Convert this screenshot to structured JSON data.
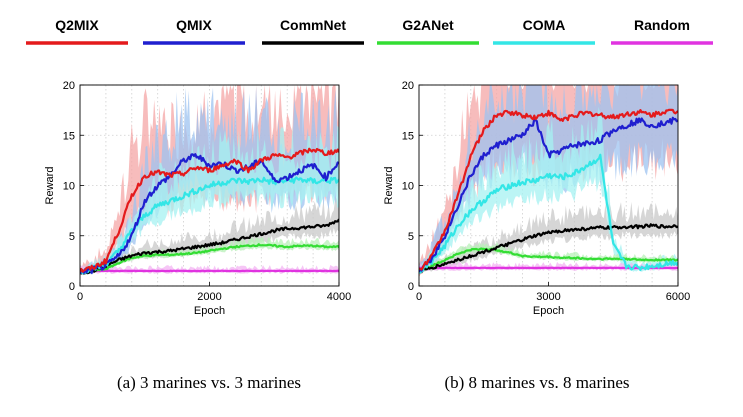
{
  "legend": [
    {
      "label": "Q2MIX",
      "color": "#e41a1c"
    },
    {
      "label": "QMIX",
      "color": "#1f1fcf"
    },
    {
      "label": "CommNet",
      "color": "#000000"
    },
    {
      "label": "G2ANet",
      "color": "#33dd33"
    },
    {
      "label": "COMA",
      "color": "#33e6e6"
    },
    {
      "label": "Random",
      "color": "#e033e0"
    }
  ],
  "chart_data": [
    {
      "type": "line",
      "caption": "(a) 3 marines vs. 3 marines",
      "xlabel": "Epoch",
      "ylabel": "Reward",
      "xlim": [
        0,
        4000
      ],
      "ylim": [
        0,
        20
      ],
      "xticks": [
        0,
        2000,
        4000
      ],
      "yticks": [
        0,
        5,
        10,
        15,
        20
      ],
      "grid": true,
      "x": [
        0,
        200,
        400,
        600,
        800,
        1000,
        1200,
        1400,
        1600,
        1800,
        2000,
        2200,
        2400,
        2600,
        2800,
        3000,
        3200,
        3400,
        3600,
        3800,
        4000
      ],
      "series": [
        {
          "name": "Q2MIX",
          "values": [
            1.5,
            1.8,
            2.5,
            5.5,
            9.0,
            11.0,
            11.3,
            11.0,
            11.2,
            11.8,
            11.5,
            12.0,
            12.5,
            11.5,
            12.5,
            13.0,
            12.8,
            13.2,
            13.6,
            13.2,
            13.5
          ]
        },
        {
          "name": "QMIX",
          "values": [
            1.4,
            1.6,
            2.0,
            3.0,
            5.0,
            8.5,
            10.0,
            11.0,
            12.5,
            13.0,
            12.0,
            12.2,
            11.5,
            11.8,
            12.5,
            10.5,
            10.8,
            11.5,
            12.0,
            10.8,
            12.4
          ]
        },
        {
          "name": "CommNet",
          "values": [
            1.3,
            1.5,
            2.0,
            2.6,
            3.0,
            3.3,
            3.4,
            3.5,
            3.7,
            3.9,
            4.1,
            4.3,
            4.6,
            4.9,
            5.2,
            5.5,
            5.7,
            5.8,
            5.9,
            6.0,
            6.6
          ]
        },
        {
          "name": "G2ANet",
          "values": [
            1.4,
            1.5,
            1.7,
            2.3,
            2.8,
            3.0,
            3.1,
            3.1,
            3.2,
            3.3,
            3.5,
            3.7,
            3.9,
            4.0,
            4.1,
            4.0,
            3.9,
            4.0,
            4.0,
            3.9,
            3.9
          ]
        },
        {
          "name": "COMA",
          "values": [
            1.5,
            1.7,
            2.2,
            3.5,
            5.5,
            7.0,
            8.0,
            8.5,
            9.0,
            9.5,
            10.0,
            10.3,
            10.5,
            10.4,
            10.6,
            10.3,
            10.5,
            10.6,
            10.4,
            10.5,
            10.5
          ]
        },
        {
          "name": "Random",
          "values": [
            1.5,
            1.5,
            1.5,
            1.5,
            1.5,
            1.5,
            1.5,
            1.5,
            1.5,
            1.5,
            1.5,
            1.5,
            1.5,
            1.5,
            1.5,
            1.5,
            1.5,
            1.5,
            1.5,
            1.5,
            1.5
          ]
        }
      ]
    },
    {
      "type": "line",
      "caption": "(b) 8 marines vs. 8 marines",
      "xlabel": "Epoch",
      "ylabel": "Reward",
      "xlim": [
        0,
        6000
      ],
      "ylim": [
        0,
        20
      ],
      "xticks": [
        0,
        3000,
        6000
      ],
      "yticks": [
        0,
        5,
        10,
        15,
        20
      ],
      "grid": true,
      "x": [
        0,
        300,
        600,
        900,
        1200,
        1500,
        1800,
        2100,
        2400,
        2700,
        3000,
        3300,
        3600,
        3900,
        4200,
        4500,
        4800,
        5100,
        5400,
        5700,
        6000
      ],
      "series": [
        {
          "name": "Q2MIX",
          "values": [
            1.5,
            3.0,
            5.5,
            9.0,
            13.0,
            15.5,
            17.0,
            17.3,
            17.0,
            16.8,
            17.2,
            16.5,
            17.0,
            17.2,
            17.0,
            16.8,
            17.1,
            17.3,
            17.0,
            17.4,
            17.3
          ]
        },
        {
          "name": "QMIX",
          "values": [
            1.5,
            2.8,
            5.0,
            8.0,
            11.0,
            13.0,
            14.0,
            14.5,
            15.0,
            16.5,
            13.0,
            13.5,
            14.0,
            14.2,
            14.5,
            15.5,
            16.0,
            16.5,
            16.0,
            16.2,
            16.6
          ]
        },
        {
          "name": "CommNet",
          "values": [
            1.4,
            1.8,
            2.2,
            2.6,
            3.0,
            3.4,
            3.8,
            4.2,
            4.6,
            5.0,
            5.3,
            5.5,
            5.6,
            5.7,
            5.8,
            5.8,
            5.9,
            5.9,
            6.0,
            5.9,
            6.0
          ]
        },
        {
          "name": "G2ANet",
          "values": [
            1.5,
            2.0,
            2.6,
            3.2,
            3.6,
            3.7,
            3.6,
            3.3,
            3.0,
            2.9,
            2.9,
            2.8,
            2.8,
            2.7,
            2.7,
            2.7,
            2.7,
            2.6,
            2.6,
            2.6,
            2.6
          ]
        },
        {
          "name": "COMA",
          "values": [
            1.5,
            2.5,
            4.0,
            6.0,
            7.5,
            8.5,
            9.5,
            10.0,
            10.3,
            10.5,
            11.0,
            10.8,
            11.2,
            12.0,
            12.8,
            4.0,
            2.0,
            1.8,
            2.0,
            2.2,
            2.4
          ]
        },
        {
          "name": "Random",
          "values": [
            1.8,
            1.8,
            1.8,
            1.8,
            1.8,
            1.8,
            1.8,
            1.8,
            1.8,
            1.8,
            1.8,
            1.8,
            1.8,
            1.8,
            1.8,
            1.8,
            1.8,
            1.8,
            1.8,
            1.8,
            1.8
          ]
        }
      ]
    }
  ]
}
